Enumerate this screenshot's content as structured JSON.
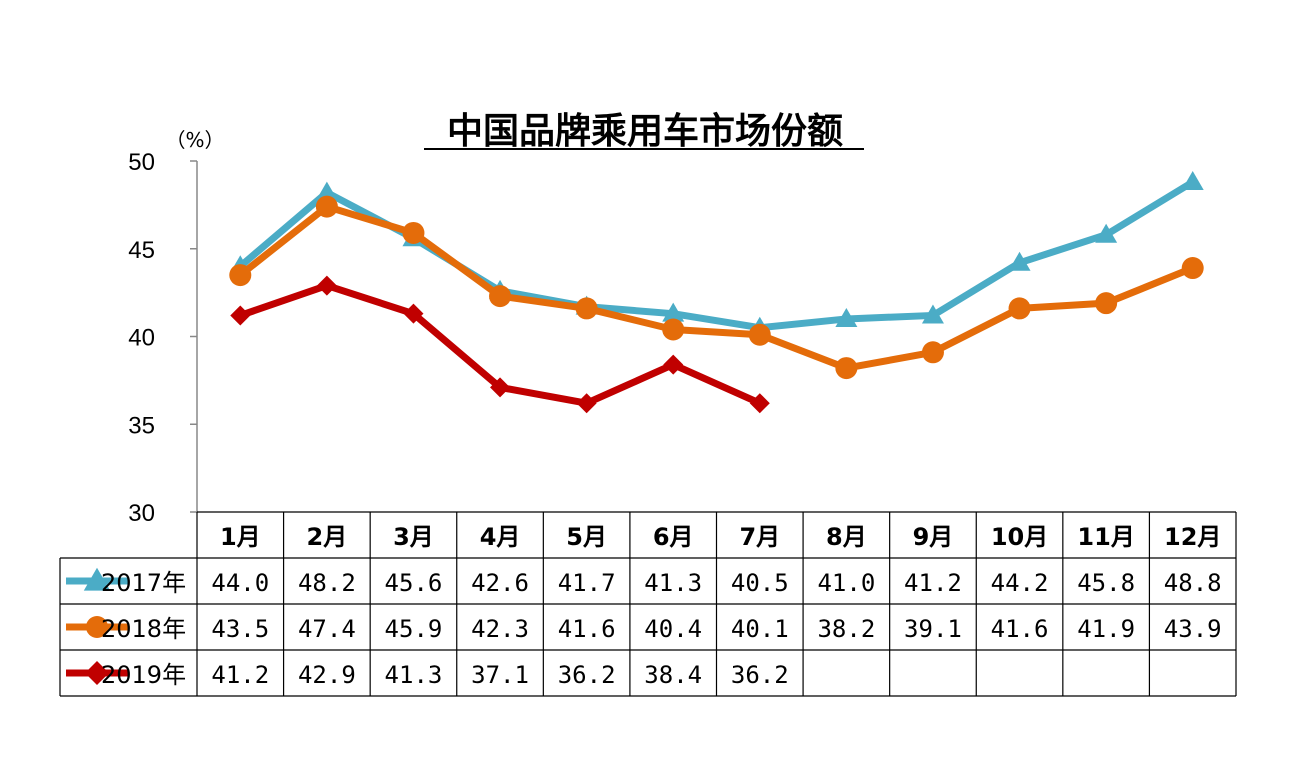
{
  "chart_data": {
    "type": "line",
    "title": "中国品牌乘用车市场份额",
    "ylabel": "（%）",
    "ylim": [
      30,
      50
    ],
    "yticks": [
      "30",
      "35",
      "40",
      "45",
      "50"
    ],
    "categories": [
      "1月",
      "2月",
      "3月",
      "4月",
      "5月",
      "6月",
      "7月",
      "8月",
      "9月",
      "10月",
      "11月",
      "12月"
    ],
    "series": [
      {
        "name": "2017年",
        "color": "#4bacc6",
        "marker": "triangle",
        "values": [
          44.0,
          48.2,
          45.6,
          42.6,
          41.7,
          41.3,
          40.5,
          41.0,
          41.2,
          44.2,
          45.8,
          48.8
        ],
        "labels": [
          "44.0",
          "48.2",
          "45.6",
          "42.6",
          "41.7",
          "41.3",
          "40.5",
          "41.0",
          "41.2",
          "44.2",
          "45.8",
          "48.8"
        ]
      },
      {
        "name": "2018年",
        "color": "#e46c0a",
        "marker": "circle",
        "values": [
          43.5,
          47.4,
          45.9,
          42.3,
          41.6,
          40.4,
          40.1,
          38.2,
          39.1,
          41.6,
          41.9,
          43.9
        ],
        "labels": [
          "43.5",
          "47.4",
          "45.9",
          "42.3",
          "41.6",
          "40.4",
          "40.1",
          "38.2",
          "39.1",
          "41.6",
          "41.9",
          "43.9"
        ]
      },
      {
        "name": "2019年",
        "color": "#c00000",
        "marker": "diamond",
        "values": [
          41.2,
          42.9,
          41.3,
          37.1,
          36.2,
          38.4,
          36.2,
          null,
          null,
          null,
          null,
          null
        ],
        "labels": [
          "41.2",
          "42.9",
          "41.3",
          "37.1",
          "36.2",
          "38.4",
          "36.2",
          "",
          "",
          "",
          "",
          ""
        ]
      }
    ],
    "grid": false,
    "legend": "data-table"
  }
}
